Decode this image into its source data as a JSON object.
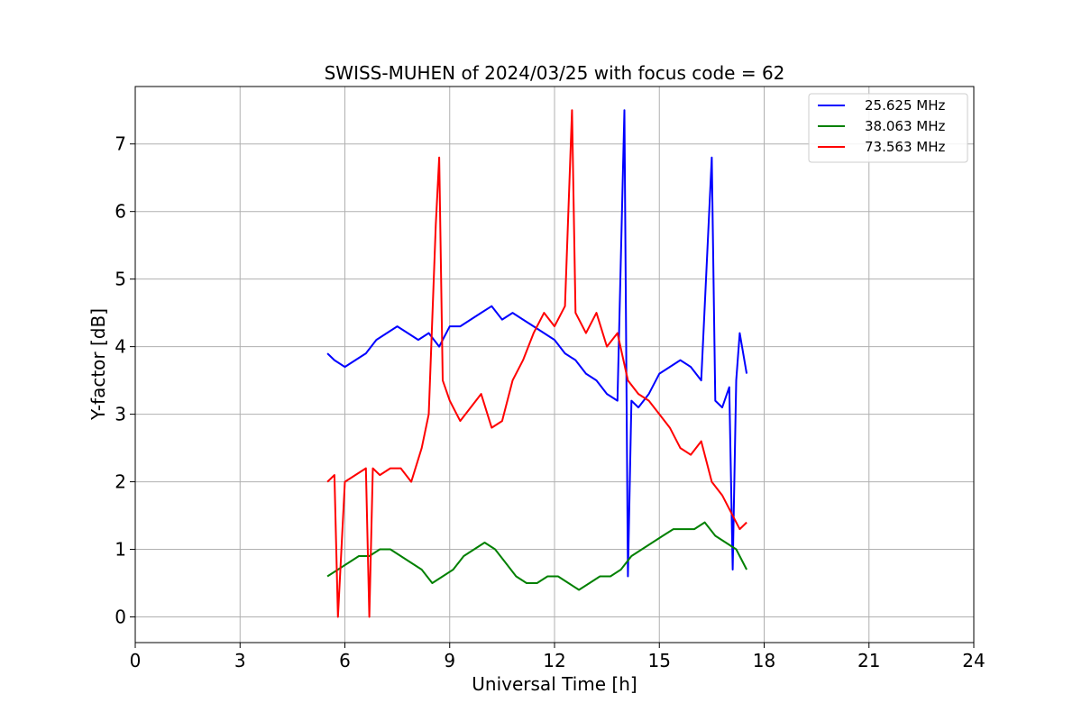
{
  "chart_data": {
    "type": "line",
    "title": "SWISS-MUHEN of 2024/03/25 with focus code = 62",
    "xlabel": "Universal Time [h]",
    "ylabel": "Y-factor [dB]",
    "xlim": [
      0,
      24
    ],
    "ylim": [
      -0.38,
      7.85
    ],
    "xticks": [
      0,
      3,
      6,
      9,
      12,
      15,
      18,
      21,
      24
    ],
    "yticks": [
      0,
      1,
      2,
      3,
      4,
      5,
      6,
      7
    ],
    "grid": true,
    "legend_position": "top-right",
    "series": [
      {
        "name": "25.625 MHz",
        "color": "#0000ff",
        "x": [
          5.5,
          5.7,
          6.0,
          6.3,
          6.6,
          6.9,
          7.2,
          7.5,
          7.8,
          8.1,
          8.4,
          8.7,
          9.0,
          9.3,
          9.6,
          9.9,
          10.2,
          10.5,
          10.8,
          11.1,
          11.4,
          11.7,
          12.0,
          12.3,
          12.6,
          12.9,
          13.2,
          13.5,
          13.8,
          14.0,
          14.1,
          14.2,
          14.4,
          14.7,
          15.0,
          15.3,
          15.6,
          15.9,
          16.2,
          16.5,
          16.6,
          16.8,
          17.0,
          17.1,
          17.2,
          17.3,
          17.5
        ],
        "y": [
          3.9,
          3.8,
          3.7,
          3.8,
          3.9,
          4.1,
          4.2,
          4.3,
          4.2,
          4.1,
          4.2,
          4.0,
          4.3,
          4.3,
          4.4,
          4.5,
          4.6,
          4.4,
          4.5,
          4.4,
          4.3,
          4.2,
          4.1,
          3.9,
          3.8,
          3.6,
          3.5,
          3.3,
          3.2,
          7.5,
          0.6,
          3.2,
          3.1,
          3.3,
          3.6,
          3.7,
          3.8,
          3.7,
          3.5,
          6.8,
          3.2,
          3.1,
          3.4,
          0.7,
          3.5,
          4.2,
          3.6
        ]
      },
      {
        "name": "38.063 MHz",
        "color": "#008000",
        "x": [
          5.5,
          5.8,
          6.1,
          6.4,
          6.7,
          7.0,
          7.3,
          7.6,
          7.9,
          8.2,
          8.5,
          8.8,
          9.1,
          9.4,
          9.7,
          10.0,
          10.3,
          10.6,
          10.9,
          11.2,
          11.5,
          11.8,
          12.1,
          12.4,
          12.7,
          13.0,
          13.3,
          13.6,
          13.9,
          14.2,
          14.5,
          14.8,
          15.1,
          15.4,
          15.7,
          16.0,
          16.3,
          16.6,
          16.9,
          17.2,
          17.5
        ],
        "y": [
          0.6,
          0.7,
          0.8,
          0.9,
          0.9,
          1.0,
          1.0,
          0.9,
          0.8,
          0.7,
          0.5,
          0.6,
          0.7,
          0.9,
          1.0,
          1.1,
          1.0,
          0.8,
          0.6,
          0.5,
          0.5,
          0.6,
          0.6,
          0.5,
          0.4,
          0.5,
          0.6,
          0.6,
          0.7,
          0.9,
          1.0,
          1.1,
          1.2,
          1.3,
          1.3,
          1.3,
          1.4,
          1.2,
          1.1,
          1.0,
          0.7
        ]
      },
      {
        "name": "73.563 MHz",
        "color": "#ff0000",
        "x": [
          5.5,
          5.7,
          5.8,
          6.0,
          6.3,
          6.6,
          6.7,
          6.8,
          7.0,
          7.3,
          7.6,
          7.9,
          8.2,
          8.4,
          8.6,
          8.7,
          8.8,
          9.0,
          9.3,
          9.6,
          9.9,
          10.2,
          10.5,
          10.8,
          11.1,
          11.4,
          11.7,
          12.0,
          12.3,
          12.5,
          12.6,
          12.9,
          13.2,
          13.5,
          13.8,
          14.1,
          14.4,
          14.7,
          15.0,
          15.3,
          15.6,
          15.9,
          16.2,
          16.5,
          16.8,
          17.1,
          17.3,
          17.5
        ],
        "y": [
          2.0,
          2.1,
          0.0,
          2.0,
          2.1,
          2.2,
          0.0,
          2.2,
          2.1,
          2.2,
          2.2,
          2.0,
          2.5,
          3.0,
          5.8,
          6.8,
          3.5,
          3.2,
          2.9,
          3.1,
          3.3,
          2.8,
          2.9,
          3.5,
          3.8,
          4.2,
          4.5,
          4.3,
          4.6,
          7.5,
          4.5,
          4.2,
          4.5,
          4.0,
          4.2,
          3.5,
          3.3,
          3.2,
          3.0,
          2.8,
          2.5,
          2.4,
          2.6,
          2.0,
          1.8,
          1.5,
          1.3,
          1.4
        ]
      }
    ]
  }
}
